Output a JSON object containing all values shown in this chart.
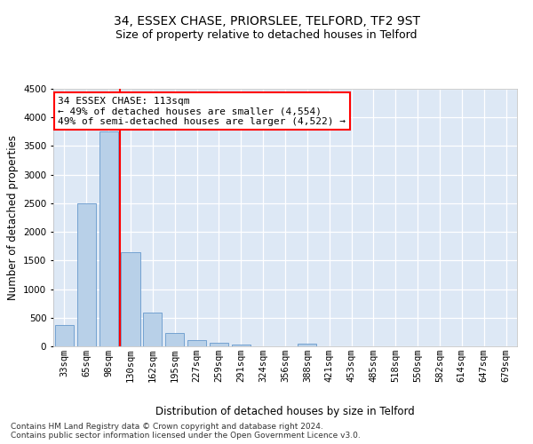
{
  "title": "34, ESSEX CHASE, PRIORSLEE, TELFORD, TF2 9ST",
  "subtitle": "Size of property relative to detached houses in Telford",
  "xlabel": "Distribution of detached houses by size in Telford",
  "ylabel": "Number of detached properties",
  "categories": [
    "33sqm",
    "65sqm",
    "98sqm",
    "130sqm",
    "162sqm",
    "195sqm",
    "227sqm",
    "259sqm",
    "291sqm",
    "324sqm",
    "356sqm",
    "388sqm",
    "421sqm",
    "453sqm",
    "485sqm",
    "518sqm",
    "550sqm",
    "582sqm",
    "614sqm",
    "647sqm",
    "679sqm"
  ],
  "values": [
    370,
    2500,
    3750,
    1640,
    590,
    230,
    105,
    60,
    35,
    0,
    0,
    50,
    0,
    0,
    0,
    0,
    0,
    0,
    0,
    0,
    0
  ],
  "bar_color": "#b8d0e8",
  "bar_edge_color": "#6699cc",
  "vline_x": 2.5,
  "vline_color": "red",
  "annotation_text": "34 ESSEX CHASE: 113sqm\n← 49% of detached houses are smaller (4,554)\n49% of semi-detached houses are larger (4,522) →",
  "annotation_box_color": "white",
  "annotation_box_edge": "red",
  "ylim": [
    0,
    4500
  ],
  "yticks": [
    0,
    500,
    1000,
    1500,
    2000,
    2500,
    3000,
    3500,
    4000,
    4500
  ],
  "footnote": "Contains HM Land Registry data © Crown copyright and database right 2024.\nContains public sector information licensed under the Open Government Licence v3.0.",
  "background_color": "#dde8f5",
  "grid_color": "white",
  "title_fontsize": 10,
  "subtitle_fontsize": 9,
  "axis_label_fontsize": 8.5,
  "tick_fontsize": 7.5,
  "annotation_fontsize": 8,
  "footnote_fontsize": 6.5
}
